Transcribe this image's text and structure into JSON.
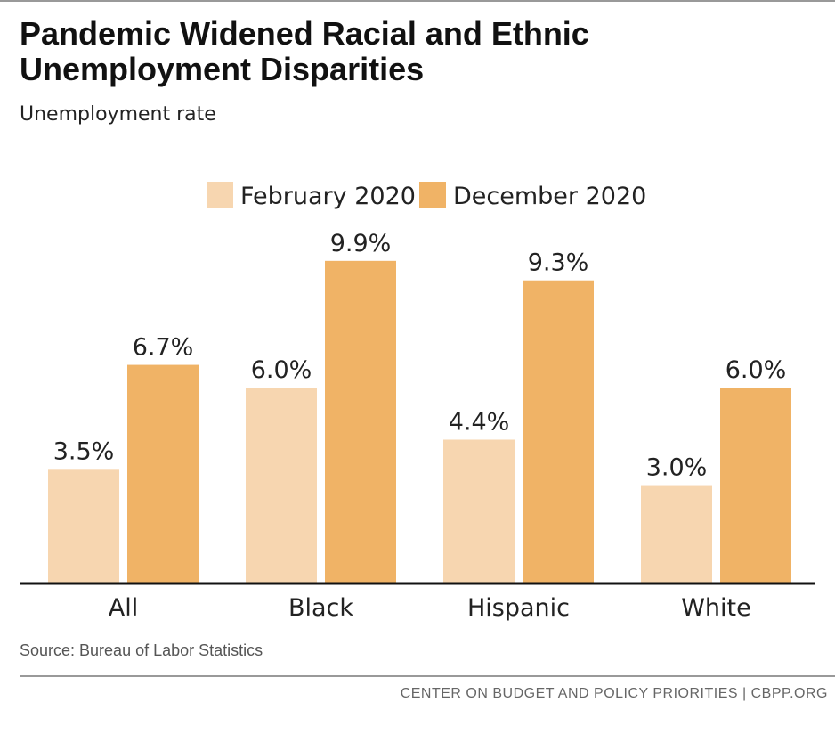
{
  "header": {
    "title": "Pandemic Widened Racial and Ethnic Unemployment Disparities",
    "subtitle": "Unemployment rate"
  },
  "source": "Source: Bureau of Labor Statistics",
  "footer": "CENTER ON BUDGET AND POLICY PRIORITIES | CBPP.ORG",
  "colors": {
    "feb": "#f7d6b0",
    "dec": "#f0b366"
  },
  "chart_data": {
    "type": "bar",
    "title": "Pandemic Widened Racial and Ethnic Unemployment Disparities",
    "subtitle": "Unemployment rate",
    "categories": [
      "All",
      "Black",
      "Hispanic",
      "White"
    ],
    "series": [
      {
        "name": "February 2020",
        "values": [
          3.5,
          6.0,
          4.4,
          3.0
        ],
        "labels": [
          "3.5%",
          "6.0%",
          "4.4%",
          "3.0%"
        ]
      },
      {
        "name": "December 2020",
        "values": [
          6.7,
          9.9,
          9.3,
          6.0
        ],
        "labels": [
          "6.7%",
          "9.9%",
          "9.3%",
          "6.0%"
        ]
      }
    ],
    "ylim": [
      0,
      10.8
    ],
    "legend": "top-center",
    "grid": false
  }
}
